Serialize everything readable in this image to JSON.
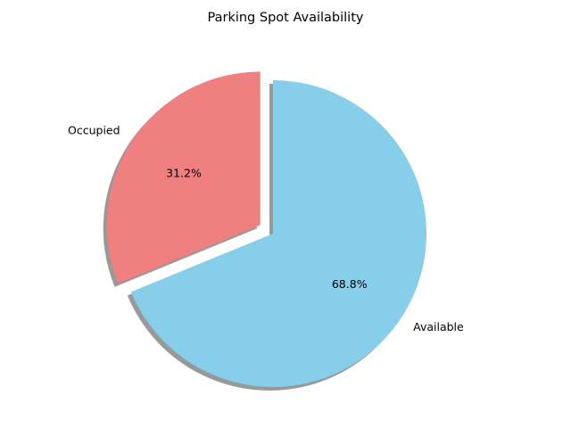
{
  "chart_data": {
    "type": "pie",
    "title": "Parking Spot Availability",
    "labels": [
      "Occupied",
      "Available"
    ],
    "values": [
      31.2,
      68.8
    ],
    "percent_labels": [
      "31.2%",
      "68.8%"
    ],
    "colors": [
      "#f08080",
      "#87ceeb"
    ],
    "explode": [
      0.1,
      0
    ],
    "start_angle": 90,
    "shadow": true,
    "shadow_color": "#999999"
  }
}
